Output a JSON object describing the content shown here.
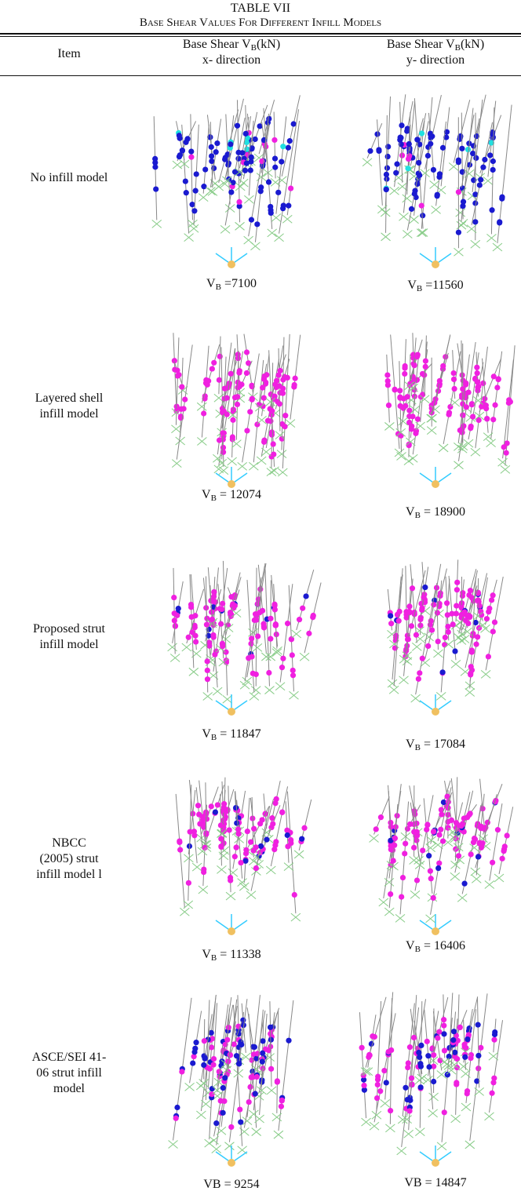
{
  "table": {
    "label": "TABLE VII",
    "caption": "Base Shear Values For Different Infill Models",
    "header": {
      "item": "Item",
      "x": {
        "text": "Base Shear V",
        "sub": "B",
        "rest": "(kN)",
        "direction": "x- direction"
      },
      "y": {
        "text": "Base Shear V",
        "sub": "B",
        "rest": "(kN)",
        "direction": "y- direction"
      }
    },
    "rows": [
      {
        "item": [
          "No infill model"
        ],
        "x": {
          "text": "V",
          "sub": "B",
          "rest": " =7100"
        },
        "y": {
          "text": "V",
          "sub": "B",
          "rest": " =11560"
        }
      },
      {
        "item": [
          "Layered shell",
          "infill model"
        ],
        "x": {
          "text": "V",
          "sub": "B",
          "rest": " = 12074"
        },
        "y": {
          "text": "V",
          "sub": "B",
          "rest": " = 18900"
        }
      },
      {
        "item": [
          "Proposed strut",
          "infill model"
        ],
        "x": {
          "text": "V",
          "sub": "B",
          "rest": " = 11847"
        },
        "y": {
          "text": "V",
          "sub": "B",
          "rest": " = 17084"
        }
      },
      {
        "item": [
          "NBCC",
          "(2005) strut",
          "infill model l"
        ],
        "x": {
          "text": "V",
          "sub": "B",
          "rest": " = 11338"
        },
        "y": {
          "text": "V",
          "sub": "B",
          "rest": " = 16406"
        }
      },
      {
        "item": [
          "ASCE/SEI 41-",
          "06 strut infill",
          "model"
        ],
        "x": {
          "text": "VB = 9254"
        },
        "y": {
          "text": "VB = 14847"
        }
      }
    ]
  }
}
